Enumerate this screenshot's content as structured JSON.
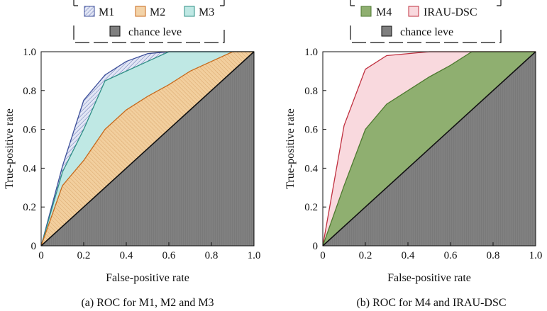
{
  "chart_data": [
    {
      "type": "area",
      "panel": "a",
      "caption": "(a) ROC for M1, M2 and M3",
      "xlabel": "False-positive rate",
      "ylabel": "True-positive rate",
      "xlim": [
        0,
        1
      ],
      "ylim": [
        0,
        1
      ],
      "xticks": [
        "0",
        "0.2",
        "0.4",
        "0.6",
        "0.8",
        "1.0"
      ],
      "yticks": [
        "0",
        "0.2",
        "0.4",
        "0.6",
        "0.8",
        "1.0"
      ],
      "legend": {
        "row1": [
          "M1",
          "M2",
          "M3"
        ],
        "row2": [
          "chance leve"
        ]
      },
      "series": [
        {
          "name": "M1",
          "fill": "#dfe3f3",
          "stroke": "#3d4f9a",
          "hatch": true,
          "x": [
            0,
            0.1,
            0.2,
            0.3,
            0.4,
            0.5,
            0.6,
            1.0
          ],
          "y": [
            0,
            0.41,
            0.75,
            0.88,
            0.95,
            0.99,
            1.0,
            1.0
          ]
        },
        {
          "name": "M3",
          "fill": "#bfe8e4",
          "stroke": "#2f8f86",
          "hatch": false,
          "x": [
            0,
            0.1,
            0.2,
            0.3,
            0.4,
            0.5,
            0.6,
            1.0
          ],
          "y": [
            0,
            0.38,
            0.6,
            0.85,
            0.9,
            0.95,
            1.0,
            1.0
          ]
        },
        {
          "name": "M2",
          "fill": "#f3d3a8",
          "stroke": "#c86a1c",
          "hatch": true,
          "x": [
            0,
            0.1,
            0.2,
            0.3,
            0.4,
            0.5,
            0.6,
            0.7,
            0.8,
            0.9,
            1.0
          ],
          "y": [
            0,
            0.31,
            0.44,
            0.6,
            0.7,
            0.77,
            0.83,
            0.9,
            0.95,
            1.0,
            1.0
          ]
        },
        {
          "name": "chance leve",
          "fill": "#7f7f7f",
          "stroke": "#111111",
          "hatch": false,
          "x": [
            0,
            1.0
          ],
          "y": [
            0,
            1.0
          ]
        }
      ]
    },
    {
      "type": "area",
      "panel": "b",
      "caption": "(b) ROC for M4 and IRAU-DSC",
      "xlabel": "False-positive rate",
      "ylabel": "True-positive rate",
      "xlim": [
        0,
        1
      ],
      "ylim": [
        0,
        1
      ],
      "xticks": [
        "0",
        "0.2",
        "0.4",
        "0.6",
        "0.8",
        "1.0"
      ],
      "yticks": [
        "0",
        "0.2",
        "0.4",
        "0.6",
        "0.8",
        "1.0"
      ],
      "legend": {
        "row1": [
          "M4",
          "IRAU-DSC"
        ],
        "row2": [
          "chance leve"
        ]
      },
      "series": [
        {
          "name": "IRAU-DSC",
          "fill": "#f9d9de",
          "stroke": "#c0303f",
          "hatch": false,
          "x": [
            0,
            0.1,
            0.2,
            0.3,
            0.4,
            0.5,
            0.6,
            0.7,
            1.0
          ],
          "y": [
            0,
            0.62,
            0.91,
            0.98,
            0.99,
            1.0,
            1.0,
            1.0,
            1.0
          ]
        },
        {
          "name": "M4",
          "fill": "#8faf70",
          "stroke": "#4e7a30",
          "hatch": false,
          "x": [
            0,
            0.1,
            0.2,
            0.3,
            0.4,
            0.5,
            0.6,
            0.7,
            0.8,
            1.0
          ],
          "y": [
            0,
            0.31,
            0.6,
            0.73,
            0.8,
            0.87,
            0.93,
            1.0,
            1.0,
            1.0
          ]
        },
        {
          "name": "chance leve",
          "fill": "#7f7f7f",
          "stroke": "#111111",
          "hatch": false,
          "x": [
            0,
            1.0
          ],
          "y": [
            0,
            1.0
          ]
        }
      ]
    }
  ]
}
